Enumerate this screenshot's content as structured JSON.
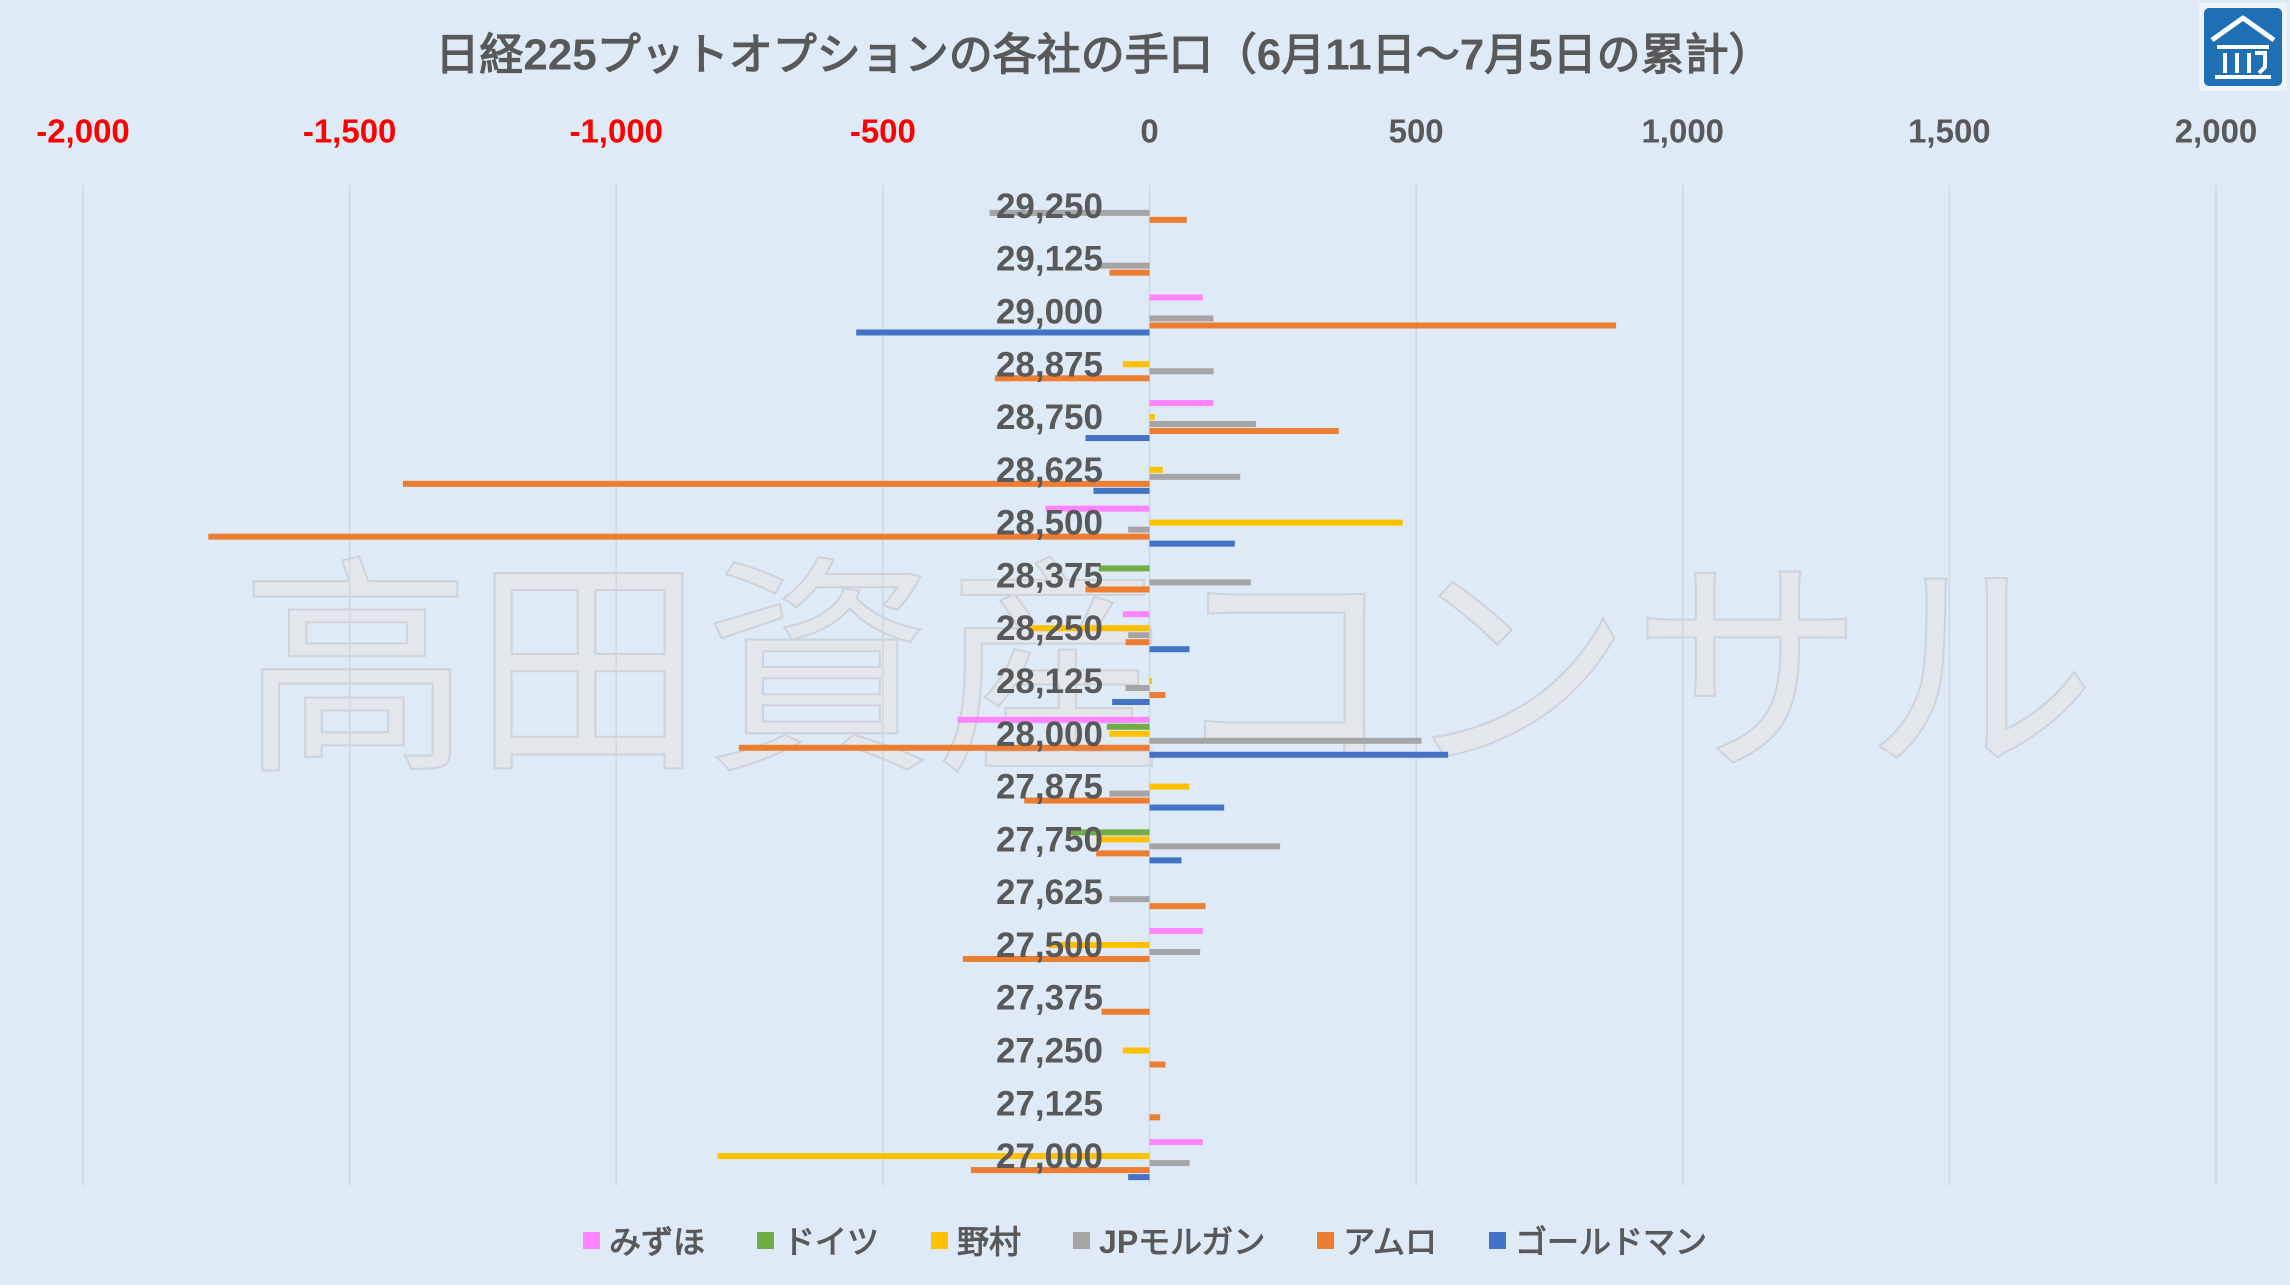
{
  "watermark": "高田資産コンサル",
  "logo": {
    "icon": "building-icon",
    "background": "#1F6FB5"
  },
  "colors": {
    "background": "#DEEAF6",
    "text": "#595959",
    "negative_tick": "#FF0000",
    "gridline": "#CFD7DF",
    "watermark": "#E3E6EA"
  },
  "chart_data": {
    "type": "bar",
    "orientation": "horizontal",
    "title": "日経225プットオプションの各社の手口（6月11日～7月5日の累計）",
    "categories": [
      "29,250",
      "29,125",
      "29,000",
      "28,875",
      "28,750",
      "28,625",
      "28,500",
      "28,375",
      "28,250",
      "28,125",
      "28,000",
      "27,875",
      "27,750",
      "27,625",
      "27,500",
      "27,375",
      "27,250",
      "27,125",
      "27,000"
    ],
    "x_axis": {
      "min": -2000,
      "max": 2000,
      "step": 500,
      "position": "top",
      "tick_labels": [
        "-2,000",
        "-1,500",
        "-1,000",
        "-500",
        "0",
        "500",
        "1,000",
        "1,500",
        "2,000"
      ]
    },
    "grid": true,
    "legend_position": "bottom",
    "series": [
      {
        "name": "みずほ",
        "color": "#FF85FF",
        "values": [
          0,
          0,
          100,
          0,
          120,
          0,
          -195,
          0,
          -50,
          0,
          -360,
          0,
          0,
          0,
          100,
          0,
          0,
          0,
          100
        ]
      },
      {
        "name": "ドイツ",
        "color": "#70AD47",
        "values": [
          0,
          0,
          0,
          0,
          0,
          0,
          0,
          -95,
          0,
          0,
          -80,
          0,
          -155,
          0,
          0,
          0,
          0,
          0,
          0
        ]
      },
      {
        "name": "野村",
        "color": "#FFC000",
        "values": [
          0,
          0,
          0,
          -50,
          10,
          25,
          475,
          0,
          -225,
          5,
          -75,
          75,
          -100,
          0,
          -190,
          0,
          -50,
          0,
          -810
        ]
      },
      {
        "name": "JPモルガン",
        "color": "#A5A5A5",
        "values": [
          -300,
          -95,
          120,
          120,
          200,
          170,
          -40,
          190,
          -40,
          -45,
          510,
          -75,
          245,
          -75,
          95,
          0,
          0,
          0,
          75
        ]
      },
      {
        "name": "アムロ",
        "color": "#ED7D31",
        "values": [
          70,
          -75,
          875,
          -290,
          355,
          -1400,
          -1765,
          -120,
          -45,
          30,
          -770,
          -235,
          -100,
          105,
          -350,
          -90,
          30,
          20,
          -335
        ]
      },
      {
        "name": "ゴールドマン",
        "color": "#4472C4",
        "values": [
          0,
          0,
          -550,
          0,
          -120,
          -105,
          160,
          0,
          75,
          -70,
          560,
          140,
          60,
          0,
          0,
          0,
          0,
          0,
          -40
        ]
      }
    ]
  }
}
